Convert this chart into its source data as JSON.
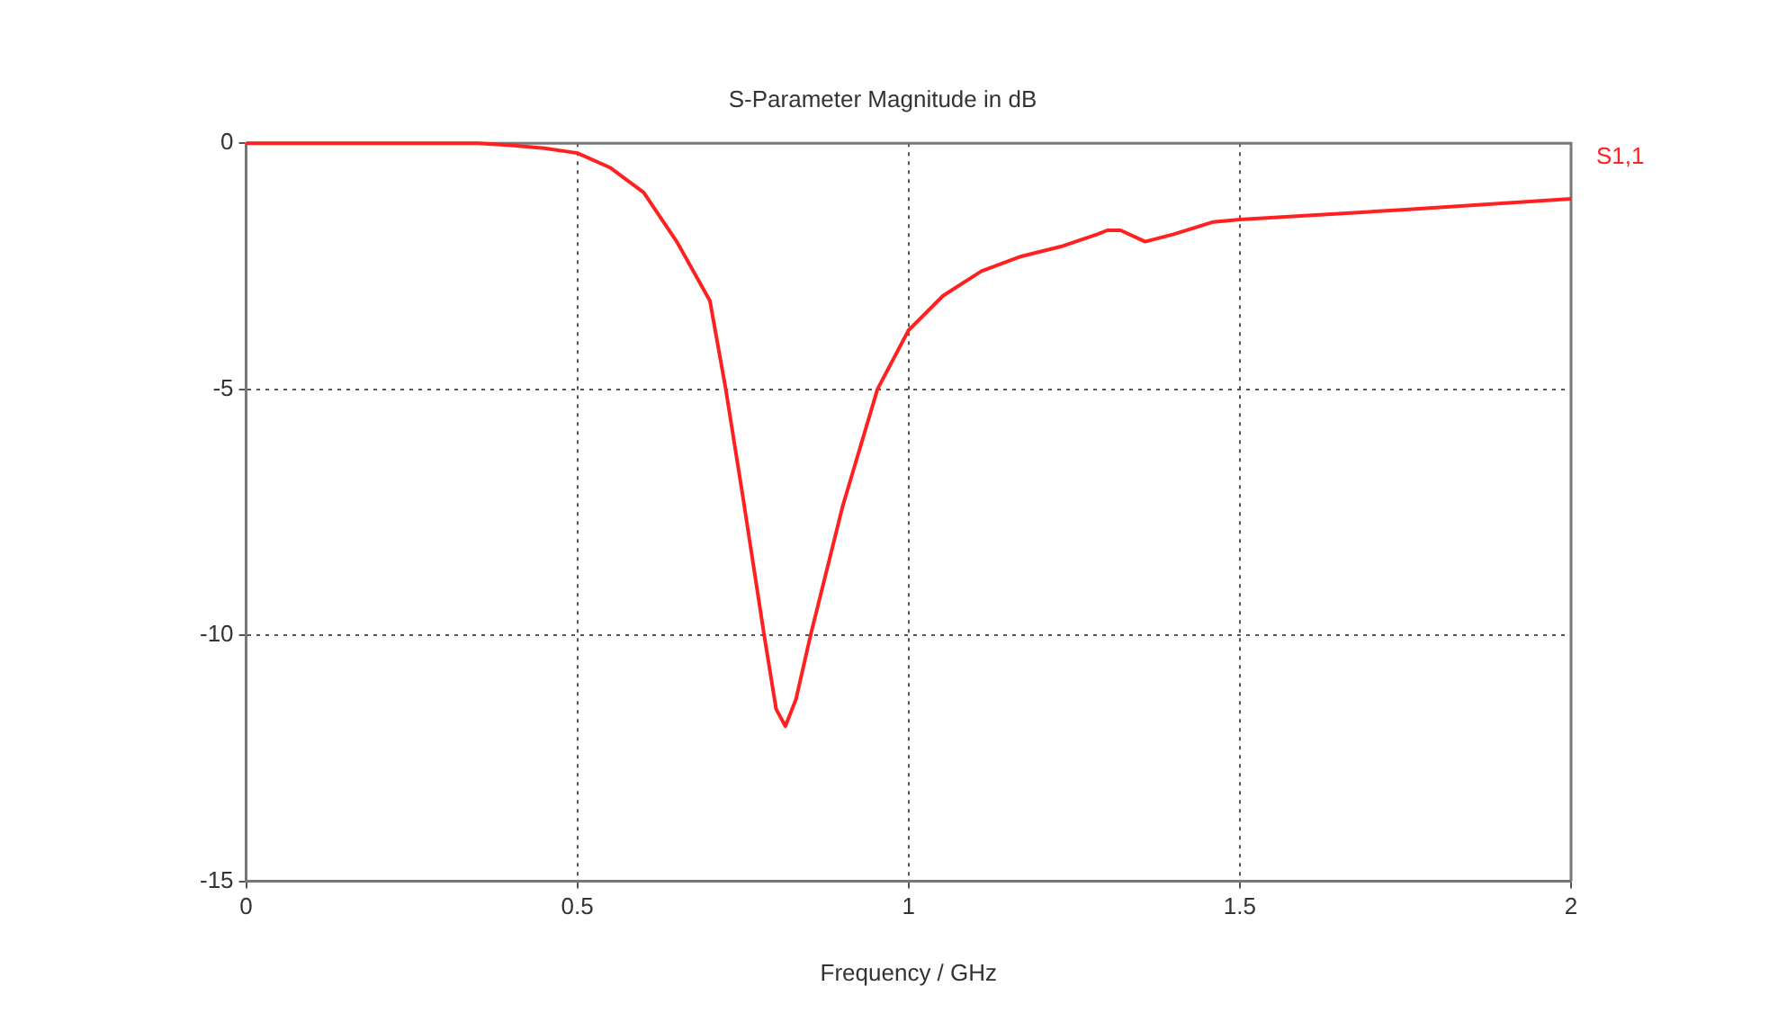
{
  "chart_data": {
    "type": "line",
    "title": "S-Parameter Magnitude in dB",
    "xlabel": "Frequency / GHz",
    "x": [
      0,
      0.1,
      0.2,
      0.3,
      0.35,
      0.4,
      0.45,
      0.5,
      0.55,
      0.6,
      0.65,
      0.7,
      0.724,
      0.75,
      0.782,
      0.8,
      0.814,
      0.83,
      0.852,
      0.9,
      0.953,
      1,
      1.052,
      1.11,
      1.17,
      1.23,
      1.285,
      1.3,
      1.32,
      1.357,
      1.4,
      1.46,
      1.5,
      1.75,
      2
    ],
    "series": [
      {
        "name": "S1,1",
        "color": "#ff2020",
        "values": [
          0,
          0,
          0,
          0,
          0,
          -0.04,
          -0.1,
          -0.2,
          -0.5,
          -1,
          -2,
          -3.2,
          -5,
          -7.2,
          -10,
          -11.5,
          -11.85,
          -11.3,
          -10,
          -7.4,
          -5,
          -3.8,
          -3.1,
          -2.6,
          -2.3,
          -2.1,
          -1.85,
          -1.77,
          -1.77,
          -2,
          -1.85,
          -1.6,
          -1.55,
          -1.35,
          -1.13
        ]
      }
    ],
    "xlim": [
      0,
      2
    ],
    "xticks": [
      0,
      0.5,
      1,
      1.5,
      2
    ],
    "ylim": [
      -15,
      0
    ],
    "yticks": [
      -15,
      -10,
      -5,
      0
    ],
    "grid": true,
    "legend": false,
    "marker": "none",
    "line_style": "solid"
  }
}
